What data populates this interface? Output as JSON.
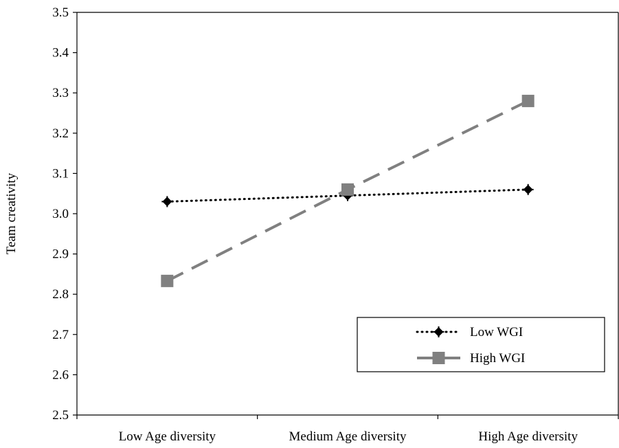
{
  "chart_data": {
    "type": "line",
    "categories": [
      "Low Age diversity",
      "Medium Age diversity",
      "High Age diversity"
    ],
    "ylabel": "Team creativity",
    "ylim": [
      2.5,
      3.5
    ],
    "yticks": [
      "2.5",
      "2.6",
      "2.7",
      "2.8",
      "2.9",
      "3.0",
      "3.1",
      "3.2",
      "3.3",
      "3.4",
      "3.5"
    ],
    "grid": false,
    "legend_position": "bottom-right",
    "series": [
      {
        "name": "Low WGI",
        "values": [
          3.03,
          3.045,
          3.06
        ],
        "color": "#000000",
        "line_style": "dotted",
        "marker": "diamond-plus"
      },
      {
        "name": "High WGI",
        "values": [
          2.833,
          3.06,
          3.28
        ],
        "color": "#808080",
        "line_style": "dashed",
        "marker": "square"
      }
    ]
  }
}
